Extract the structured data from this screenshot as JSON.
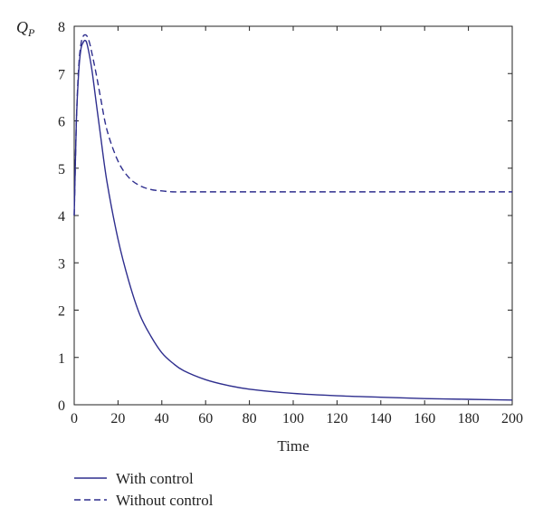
{
  "chart_data": {
    "type": "line",
    "ylabel_main": "Q",
    "ylabel_sub": "P",
    "xlabel": "Time",
    "xlim": [
      0,
      200
    ],
    "ylim": [
      0,
      8
    ],
    "xticks": [
      0,
      20,
      40,
      60,
      80,
      100,
      120,
      140,
      160,
      180,
      200
    ],
    "yticks": [
      0,
      1,
      2,
      3,
      4,
      5,
      6,
      7,
      8
    ],
    "grid": false,
    "legend_position": "bottom-left",
    "line_color": "#2e2e8e",
    "series": [
      {
        "name": "With control",
        "style": "solid",
        "x": [
          0,
          1,
          2,
          3,
          4,
          5,
          6,
          8,
          10,
          12,
          15,
          20,
          25,
          30,
          35,
          40,
          45,
          50,
          60,
          70,
          80,
          100,
          120,
          140,
          160,
          180,
          200
        ],
        "y": [
          4.0,
          6.0,
          7.0,
          7.5,
          7.65,
          7.7,
          7.6,
          7.1,
          6.4,
          5.7,
          4.7,
          3.5,
          2.6,
          1.9,
          1.45,
          1.1,
          0.88,
          0.72,
          0.53,
          0.41,
          0.33,
          0.24,
          0.19,
          0.16,
          0.13,
          0.115,
          0.1
        ]
      },
      {
        "name": "Without control",
        "style": "dashed",
        "x": [
          0,
          1,
          2,
          3,
          4,
          5,
          6,
          7,
          8,
          10,
          12,
          15,
          20,
          25,
          30,
          35,
          40,
          45,
          50,
          60,
          80,
          100,
          120,
          140,
          160,
          180,
          200
        ],
        "y": [
          4.0,
          6.0,
          7.1,
          7.6,
          7.78,
          7.82,
          7.78,
          7.65,
          7.45,
          7.0,
          6.5,
          5.8,
          5.15,
          4.8,
          4.63,
          4.55,
          4.52,
          4.5,
          4.5,
          4.5,
          4.5,
          4.5,
          4.5,
          4.5,
          4.5,
          4.5,
          4.5
        ]
      }
    ]
  }
}
